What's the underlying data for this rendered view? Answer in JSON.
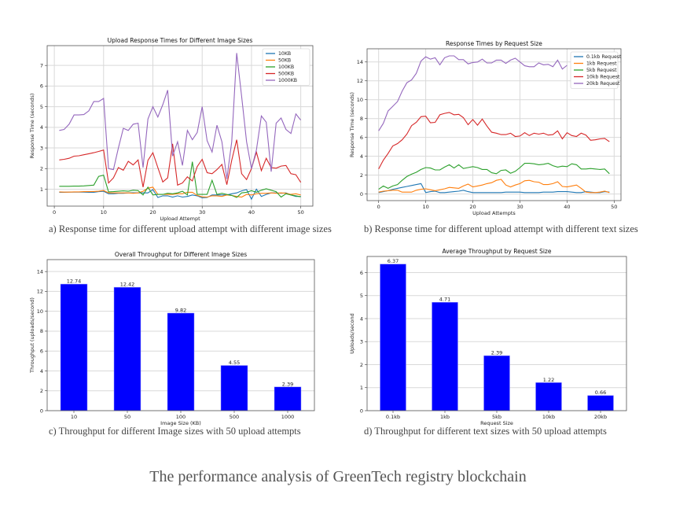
{
  "figure_title": "The performance analysis of GreenTech registry blockchain",
  "captions": {
    "a": "a) Response time for different upload attempt with different image sizes",
    "b": "b) Response time for different upload attempt with different text sizes",
    "c": "c) Throughput for different Image sizes with 50 upload attempts",
    "d": "d) Throughput for different text sizes with 50 upload attempts"
  },
  "chart_data": [
    {
      "type": "line",
      "title": "Upload Response Times for Different Image Sizes",
      "xlabel": "Upload Attempt",
      "ylabel": "Response Time (seconds)",
      "xlim": [
        -1.45,
        52.45
      ],
      "ylim": [
        0.18,
        7.96
      ],
      "xticks": [
        0,
        10,
        20,
        30,
        40,
        50
      ],
      "yticks": [
        1,
        2,
        3,
        4,
        5,
        6,
        7
      ],
      "grid": true,
      "legend": "top-right",
      "x_start": 1,
      "series": [
        {
          "name": "10KB",
          "color": "#1f77b4",
          "values": [
            0.85,
            0.85,
            0.86,
            0.86,
            0.86,
            0.86,
            0.85,
            0.85,
            0.88,
            0.9,
            0.78,
            0.78,
            0.8,
            0.8,
            0.82,
            0.83,
            0.82,
            0.82,
            0.82,
            0.98,
            0.6,
            0.68,
            0.68,
            0.62,
            0.68,
            0.62,
            0.65,
            0.72,
            0.68,
            0.58,
            0.6,
            0.72,
            0.72,
            0.72,
            0.72,
            0.78,
            0.82,
            0.92,
            0.98,
            0.52,
            1.0,
            0.65,
            0.75,
            0.82,
            0.82,
            0.8,
            0.82,
            0.72,
            0.65,
            0.65
          ]
        },
        {
          "name": "50KB",
          "color": "#ff7f0e",
          "values": [
            0.87,
            0.86,
            0.86,
            0.87,
            0.87,
            0.88,
            0.88,
            0.89,
            0.9,
            0.94,
            0.82,
            0.82,
            0.82,
            0.82,
            0.82,
            0.8,
            0.82,
            0.9,
            1.05,
            1.1,
            0.75,
            0.75,
            0.75,
            0.75,
            0.78,
            0.78,
            0.85,
            0.85,
            0.7,
            0.63,
            0.62,
            0.68,
            0.68,
            0.65,
            0.72,
            0.7,
            0.65,
            0.62,
            0.75,
            0.72,
            0.78,
            0.8,
            0.8,
            0.82,
            0.8,
            0.82,
            0.8,
            0.75,
            0.78,
            0.72
          ]
        },
        {
          "name": "100KB",
          "color": "#2ca02c",
          "values": [
            1.14,
            1.14,
            1.14,
            1.15,
            1.15,
            1.16,
            1.18,
            1.2,
            1.62,
            1.68,
            0.87,
            0.88,
            0.9,
            0.92,
            0.9,
            0.95,
            0.93,
            0.72,
            1.1,
            0.72,
            0.75,
            0.75,
            0.8,
            0.78,
            0.82,
            0.9,
            0.72,
            2.33,
            0.75,
            0.75,
            0.75,
            1.43,
            0.75,
            0.8,
            0.75,
            0.7,
            0.6,
            0.82,
            0.85,
            0.93,
            0.85,
            0.95,
            1.02,
            0.95,
            0.88,
            0.62,
            0.78,
            0.72,
            0.68,
            0.63
          ]
        },
        {
          "name": "500KB",
          "color": "#d62728",
          "values": [
            2.42,
            2.45,
            2.5,
            2.6,
            2.62,
            2.67,
            2.72,
            2.77,
            2.83,
            2.9,
            1.3,
            1.55,
            2.05,
            1.92,
            2.35,
            2.18,
            2.42,
            1.1,
            2.4,
            2.77,
            2.05,
            1.35,
            1.55,
            3.2,
            1.2,
            1.3,
            1.6,
            1.4,
            2.1,
            2.45,
            1.8,
            1.75,
            1.95,
            2.2,
            1.22,
            2.4,
            3.4,
            1.75,
            1.47,
            2.0,
            2.8,
            1.9,
            2.5,
            2.05,
            2.02,
            2.12,
            2.15,
            1.75,
            1.7,
            1.33
          ]
        },
        {
          "name": "1000KB",
          "color": "#9467bd",
          "values": [
            3.85,
            3.9,
            4.15,
            4.6,
            4.6,
            4.62,
            4.8,
            5.25,
            5.25,
            5.4,
            2.0,
            1.95,
            3.0,
            3.95,
            3.85,
            4.15,
            4.2,
            2.05,
            4.4,
            5.0,
            4.5,
            5.1,
            5.8,
            2.6,
            3.3,
            2.15,
            3.85,
            3.4,
            3.75,
            5.0,
            3.35,
            2.8,
            4.1,
            3.3,
            1.5,
            3.3,
            7.6,
            5.5,
            3.3,
            2.0,
            2.9,
            4.55,
            4.25,
            1.85,
            4.2,
            4.45,
            3.9,
            3.7,
            4.65,
            4.35
          ]
        }
      ]
    },
    {
      "type": "line",
      "title": "Response Times by Request Size",
      "xlabel": "Upload Attempts",
      "ylabel": "Response Time (seconds)",
      "xlim": [
        -2.45,
        51.45
      ],
      "ylim": [
        -0.7,
        15.4
      ],
      "xticks": [
        0,
        10,
        20,
        30,
        40,
        50
      ],
      "yticks": [
        0,
        2,
        4,
        6,
        8,
        10,
        12,
        14
      ],
      "grid": true,
      "legend": "top-right",
      "x_start": 0,
      "series": [
        {
          "name": "0.1kb Request",
          "color": "#1f77b4",
          "values": [
            0.15,
            0.25,
            0.35,
            0.5,
            0.6,
            0.7,
            0.8,
            0.9,
            1.0,
            1.1,
            0.15,
            0.25,
            0.3,
            0.15,
            0.15,
            0.2,
            0.25,
            0.3,
            0.4,
            0.25,
            0.15,
            0.15,
            0.15,
            0.15,
            0.15,
            0.15,
            0.15,
            0.2,
            0.2,
            0.2,
            0.2,
            0.15,
            0.15,
            0.15,
            0.15,
            0.2,
            0.2,
            0.2,
            0.25,
            0.25,
            0.25,
            0.2,
            0.15,
            0.15,
            0.25,
            0.2,
            0.15,
            0.15,
            0.25,
            0.2
          ]
        },
        {
          "name": "1kb Request",
          "color": "#ff7f0e",
          "values": [
            0.2,
            0.3,
            0.35,
            0.4,
            0.4,
            0.2,
            0.2,
            0.2,
            0.4,
            0.5,
            0.55,
            0.45,
            0.35,
            0.45,
            0.55,
            0.7,
            0.65,
            0.6,
            0.85,
            1.05,
            0.75,
            0.85,
            0.95,
            1.1,
            1.2,
            1.45,
            1.55,
            0.95,
            0.75,
            0.95,
            1.1,
            1.4,
            1.45,
            1.3,
            1.25,
            1.0,
            1.0,
            1.1,
            1.3,
            0.8,
            0.75,
            0.85,
            0.95,
            0.6,
            0.2,
            0.15,
            0.15,
            0.2,
            0.3,
            0.15
          ]
        },
        {
          "name": "5kb Request",
          "color": "#2ca02c",
          "values": [
            0.5,
            0.85,
            0.6,
            0.85,
            1.0,
            1.45,
            1.85,
            2.1,
            2.3,
            2.6,
            2.8,
            2.75,
            2.55,
            2.55,
            2.85,
            3.1,
            2.75,
            3.1,
            2.7,
            2.8,
            2.9,
            2.8,
            2.6,
            2.6,
            2.25,
            2.15,
            2.5,
            2.55,
            2.2,
            2.4,
            2.8,
            3.25,
            3.25,
            3.2,
            3.1,
            3.15,
            3.25,
            3.0,
            2.85,
            2.95,
            2.9,
            3.2,
            3.1,
            2.65,
            2.65,
            2.7,
            2.65,
            2.6,
            2.65,
            2.15
          ]
        },
        {
          "name": "10kb Request",
          "color": "#d62728",
          "values": [
            2.65,
            3.6,
            4.3,
            5.1,
            5.35,
            5.75,
            6.35,
            7.25,
            7.6,
            8.2,
            8.25,
            7.55,
            7.6,
            8.4,
            8.55,
            8.65,
            8.4,
            8.45,
            8.1,
            7.35,
            7.9,
            7.3,
            7.95,
            7.2,
            6.55,
            6.45,
            6.3,
            6.3,
            6.45,
            6.1,
            6.15,
            6.5,
            6.2,
            6.45,
            6.35,
            6.45,
            6.25,
            6.3,
            6.7,
            5.85,
            6.5,
            6.2,
            6.1,
            6.45,
            6.25,
            5.7,
            5.75,
            5.85,
            5.9,
            5.55
          ]
        },
        {
          "name": "20kb Request",
          "color": "#9467bd",
          "values": [
            6.7,
            7.5,
            8.8,
            9.3,
            9.8,
            10.9,
            11.8,
            12.1,
            12.8,
            14.1,
            14.55,
            14.3,
            14.45,
            13.7,
            14.45,
            14.65,
            14.65,
            14.25,
            14.25,
            13.8,
            13.95,
            14.0,
            14.3,
            13.9,
            13.9,
            14.2,
            14.2,
            13.85,
            14.2,
            14.4,
            14.0,
            13.6,
            13.5,
            13.5,
            13.9,
            13.7,
            13.75,
            13.5,
            14.2,
            13.25,
            13.65
          ]
        }
      ]
    },
    {
      "type": "bar",
      "title": "Overall Throughput for Different Image Sizes",
      "xlabel": "Image Size (KB)",
      "ylabel": "Throughput (uploads/second)",
      "categories": [
        "10",
        "50",
        "100",
        "500",
        "1000"
      ],
      "values": [
        12.74,
        12.42,
        9.82,
        4.55,
        2.39
      ],
      "labels": [
        "12.74",
        "12.42",
        "9.82",
        "4.55",
        "2.39"
      ],
      "ylim": [
        0,
        15.2
      ],
      "yticks": [
        0,
        2,
        4,
        6,
        8,
        10,
        12,
        14
      ],
      "grid": true,
      "color": "#0000ff"
    },
    {
      "type": "bar",
      "title": "Average Throughput by Request Size",
      "xlabel": "Request Size",
      "ylabel": "Uploads/second",
      "categories": [
        "0.1kb",
        "1kb",
        "5kb",
        "10kb",
        "20kb"
      ],
      "values": [
        6.37,
        4.71,
        2.39,
        1.22,
        0.66
      ],
      "labels": [
        "6.37",
        "4.71",
        "2.39",
        "1.22",
        "0.66"
      ],
      "ylim": [
        0,
        6.7
      ],
      "yticks": [
        0,
        1,
        2,
        3,
        4,
        5,
        6
      ],
      "grid": true,
      "color": "#0000ff"
    }
  ]
}
